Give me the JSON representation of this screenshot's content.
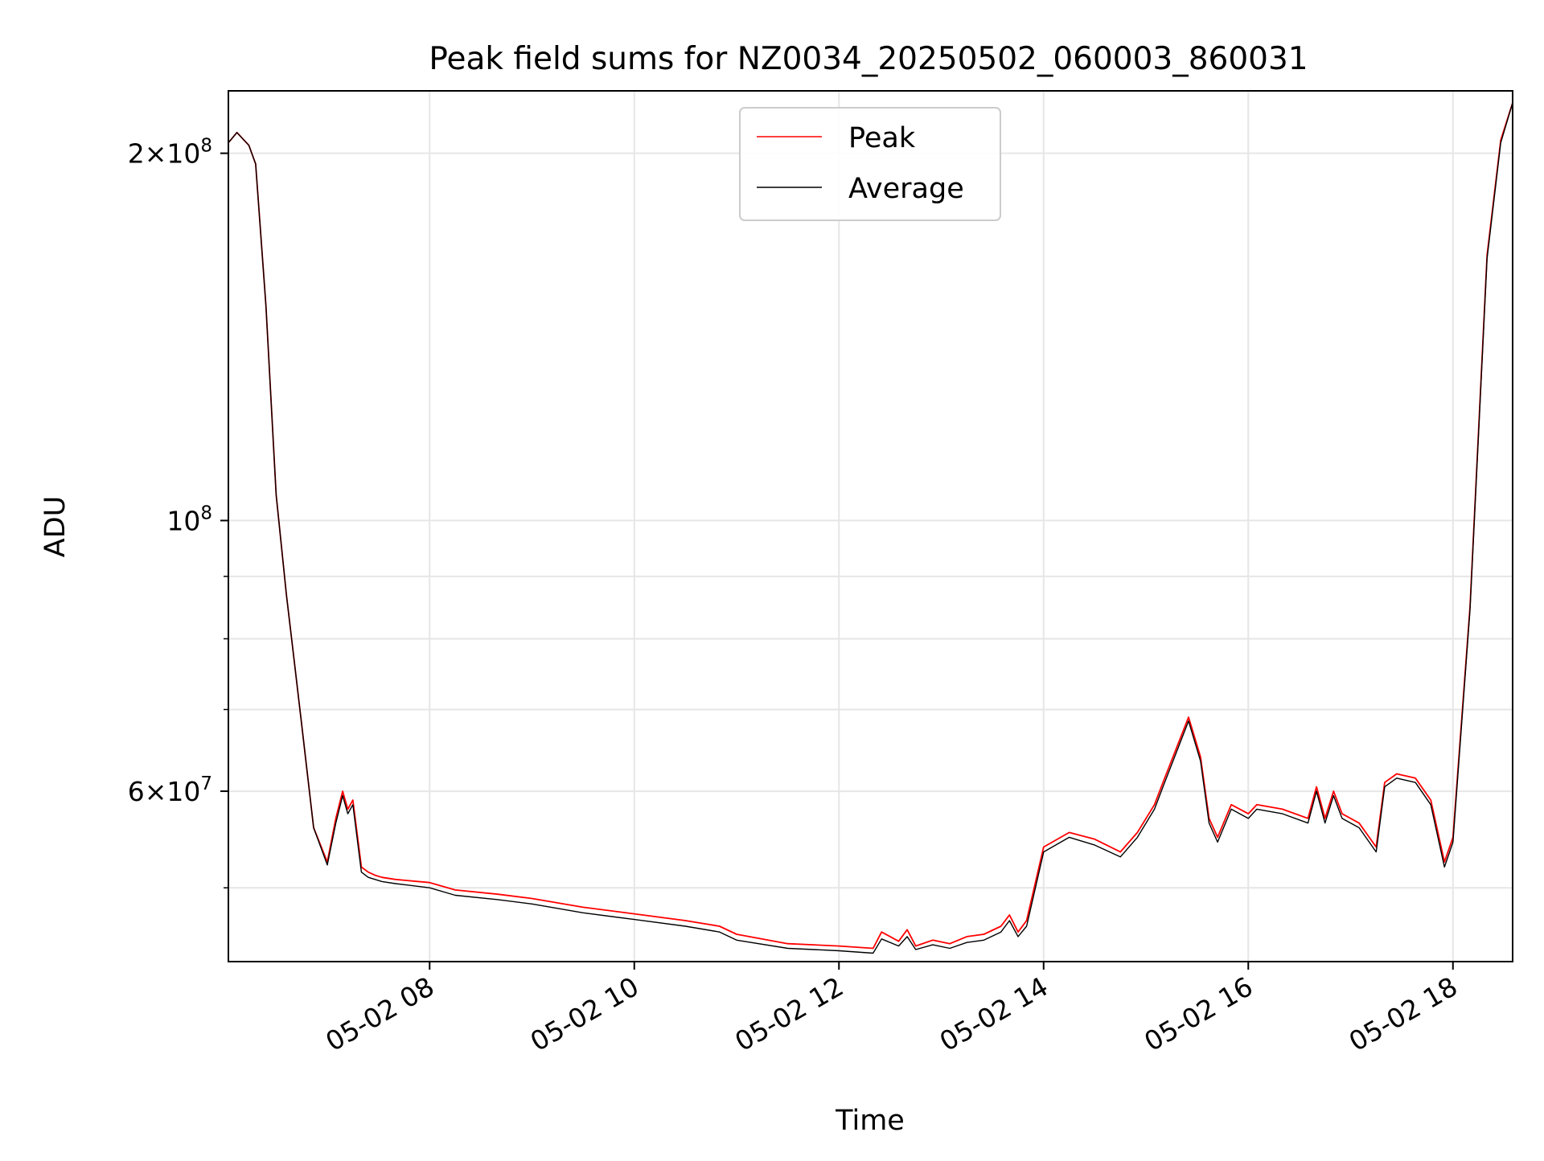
{
  "chart_data": {
    "type": "line",
    "title": "Peak field sums for NZ0034_20250502_060003_860031",
    "xlabel": "Time",
    "ylabel": "ADU",
    "y_scale": "log",
    "xlim": [
      "2025-05-02 06:02",
      "2025-05-02 18:35"
    ],
    "ylim": [
      43500000,
      225000000
    ],
    "grid": true,
    "legend_position": "top-center",
    "x_ticks": [
      {
        "time": "2025-05-02 08:00",
        "label": "05-02 08"
      },
      {
        "time": "2025-05-02 10:00",
        "label": "05-02 10"
      },
      {
        "time": "2025-05-02 12:00",
        "label": "05-02 12"
      },
      {
        "time": "2025-05-02 14:00",
        "label": "05-02 14"
      },
      {
        "time": "2025-05-02 16:00",
        "label": "05-02 16"
      },
      {
        "time": "2025-05-02 18:00",
        "label": "05-02 18"
      }
    ],
    "y_ticks": [
      {
        "value": 60000000,
        "mantissa": "6",
        "exponent": "7"
      },
      {
        "value": 100000000,
        "mantissa": "",
        "exponent": "8"
      },
      {
        "value": 200000000,
        "mantissa": "2",
        "exponent": "8"
      }
    ],
    "y_minor_ticks": [
      50000000,
      70000000,
      80000000,
      90000000
    ],
    "series": [
      {
        "name": "Peak",
        "color": "#ff0000",
        "x": [
          "2025-05-02 06:02",
          "2025-05-02 06:07",
          "2025-05-02 06:14",
          "2025-05-02 06:18",
          "2025-05-02 06:24",
          "2025-05-02 06:30",
          "2025-05-02 06:36",
          "2025-05-02 06:40",
          "2025-05-02 06:45",
          "2025-05-02 06:52",
          "2025-05-02 07:00",
          "2025-05-02 07:05",
          "2025-05-02 07:09",
          "2025-05-02 07:12",
          "2025-05-02 07:15",
          "2025-05-02 07:20",
          "2025-05-02 07:24",
          "2025-05-02 07:28",
          "2025-05-02 07:32",
          "2025-05-02 07:40",
          "2025-05-02 08:00",
          "2025-05-02 08:15",
          "2025-05-02 08:40",
          "2025-05-02 09:00",
          "2025-05-02 09:30",
          "2025-05-02 10:00",
          "2025-05-02 10:30",
          "2025-05-02 10:50",
          "2025-05-02 11:00",
          "2025-05-02 11:30",
          "2025-05-02 12:00",
          "2025-05-02 12:20",
          "2025-05-02 12:25",
          "2025-05-02 12:35",
          "2025-05-02 12:40",
          "2025-05-02 12:45",
          "2025-05-02 12:55",
          "2025-05-02 13:05",
          "2025-05-02 13:15",
          "2025-05-02 13:25",
          "2025-05-02 13:35",
          "2025-05-02 13:40",
          "2025-05-02 13:45",
          "2025-05-02 13:50",
          "2025-05-02 14:00",
          "2025-05-02 14:15",
          "2025-05-02 14:30",
          "2025-05-02 14:45",
          "2025-05-02 14:55",
          "2025-05-02 15:05",
          "2025-05-02 15:10",
          "2025-05-02 15:25",
          "2025-05-02 15:32",
          "2025-05-02 15:37",
          "2025-05-02 15:42",
          "2025-05-02 15:50",
          "2025-05-02 16:00",
          "2025-05-02 16:05",
          "2025-05-02 16:20",
          "2025-05-02 16:35",
          "2025-05-02 16:40",
          "2025-05-02 16:45",
          "2025-05-02 16:50",
          "2025-05-02 16:55",
          "2025-05-02 17:05",
          "2025-05-02 17:15",
          "2025-05-02 17:20",
          "2025-05-02 17:27",
          "2025-05-02 17:38",
          "2025-05-02 17:47",
          "2025-05-02 17:55",
          "2025-05-02 18:00",
          "2025-05-02 18:10",
          "2025-05-02 18:20",
          "2025-05-02 18:28",
          "2025-05-02 18:35"
        ],
        "y": [
          204000000,
          208000000,
          203000000,
          196000000,
          150000000,
          105000000,
          87000000,
          78000000,
          68000000,
          56000000,
          52500000,
          57000000,
          60000000,
          58000000,
          59000000,
          52000000,
          51500000,
          51200000,
          51000000,
          50800000,
          50500000,
          49800000,
          49400000,
          49000000,
          48200000,
          47600000,
          47000000,
          46500000,
          45800000,
          45000000,
          44800000,
          44600000,
          46000000,
          45200000,
          46200000,
          44800000,
          45300000,
          45000000,
          45600000,
          45800000,
          46500000,
          47500000,
          46000000,
          47000000,
          54000000,
          55500000,
          54800000,
          53500000,
          55500000,
          58500000,
          61000000,
          69000000,
          64000000,
          57000000,
          55000000,
          58500000,
          57500000,
          58500000,
          58000000,
          57000000,
          60500000,
          57000000,
          60000000,
          57500000,
          56500000,
          54000000,
          61000000,
          62000000,
          61500000,
          59000000,
          52500000,
          55000000,
          85000000,
          165000000,
          205000000,
          220000000
        ]
      },
      {
        "name": "Average",
        "color": "#000000",
        "x": [
          "2025-05-02 06:02",
          "2025-05-02 06:07",
          "2025-05-02 06:14",
          "2025-05-02 06:18",
          "2025-05-02 06:24",
          "2025-05-02 06:30",
          "2025-05-02 06:36",
          "2025-05-02 06:40",
          "2025-05-02 06:45",
          "2025-05-02 06:52",
          "2025-05-02 07:00",
          "2025-05-02 07:05",
          "2025-05-02 07:09",
          "2025-05-02 07:12",
          "2025-05-02 07:15",
          "2025-05-02 07:20",
          "2025-05-02 07:24",
          "2025-05-02 07:28",
          "2025-05-02 07:32",
          "2025-05-02 07:40",
          "2025-05-02 08:00",
          "2025-05-02 08:15",
          "2025-05-02 08:40",
          "2025-05-02 09:00",
          "2025-05-02 09:30",
          "2025-05-02 10:00",
          "2025-05-02 10:30",
          "2025-05-02 10:50",
          "2025-05-02 11:00",
          "2025-05-02 11:30",
          "2025-05-02 12:00",
          "2025-05-02 12:20",
          "2025-05-02 12:25",
          "2025-05-02 12:35",
          "2025-05-02 12:40",
          "2025-05-02 12:45",
          "2025-05-02 12:55",
          "2025-05-02 13:05",
          "2025-05-02 13:15",
          "2025-05-02 13:25",
          "2025-05-02 13:35",
          "2025-05-02 13:40",
          "2025-05-02 13:45",
          "2025-05-02 13:50",
          "2025-05-02 14:00",
          "2025-05-02 14:15",
          "2025-05-02 14:30",
          "2025-05-02 14:45",
          "2025-05-02 14:55",
          "2025-05-02 15:05",
          "2025-05-02 15:10",
          "2025-05-02 15:25",
          "2025-05-02 15:32",
          "2025-05-02 15:37",
          "2025-05-02 15:42",
          "2025-05-02 15:50",
          "2025-05-02 16:00",
          "2025-05-02 16:05",
          "2025-05-02 16:20",
          "2025-05-02 16:35",
          "2025-05-02 16:40",
          "2025-05-02 16:45",
          "2025-05-02 16:50",
          "2025-05-02 16:55",
          "2025-05-02 17:05",
          "2025-05-02 17:15",
          "2025-05-02 17:20",
          "2025-05-02 17:27",
          "2025-05-02 17:38",
          "2025-05-02 17:47",
          "2025-05-02 17:55",
          "2025-05-02 18:00",
          "2025-05-02 18:10",
          "2025-05-02 18:20",
          "2025-05-02 18:28",
          "2025-05-02 18:35"
        ],
        "y": [
          204000000,
          208000000,
          203000000,
          196000000,
          150000000,
          105000000,
          87000000,
          78000000,
          68000000,
          56000000,
          52200000,
          56500000,
          59500000,
          57500000,
          58500000,
          51500000,
          51000000,
          50800000,
          50600000,
          50400000,
          50000000,
          49300000,
          48900000,
          48500000,
          47700000,
          47100000,
          46500000,
          46000000,
          45300000,
          44600000,
          44400000,
          44200000,
          45400000,
          44800000,
          45600000,
          44500000,
          44900000,
          44600000,
          45100000,
          45300000,
          46000000,
          47000000,
          45600000,
          46500000,
          53500000,
          55000000,
          54200000,
          53000000,
          55000000,
          58000000,
          60500000,
          68500000,
          63500000,
          56500000,
          54500000,
          58000000,
          57000000,
          58000000,
          57500000,
          56500000,
          60000000,
          56500000,
          59500000,
          57000000,
          56000000,
          53500000,
          60500000,
          61500000,
          61000000,
          58500000,
          52000000,
          54500000,
          84500000,
          164000000,
          204000000,
          220000000
        ]
      }
    ]
  }
}
